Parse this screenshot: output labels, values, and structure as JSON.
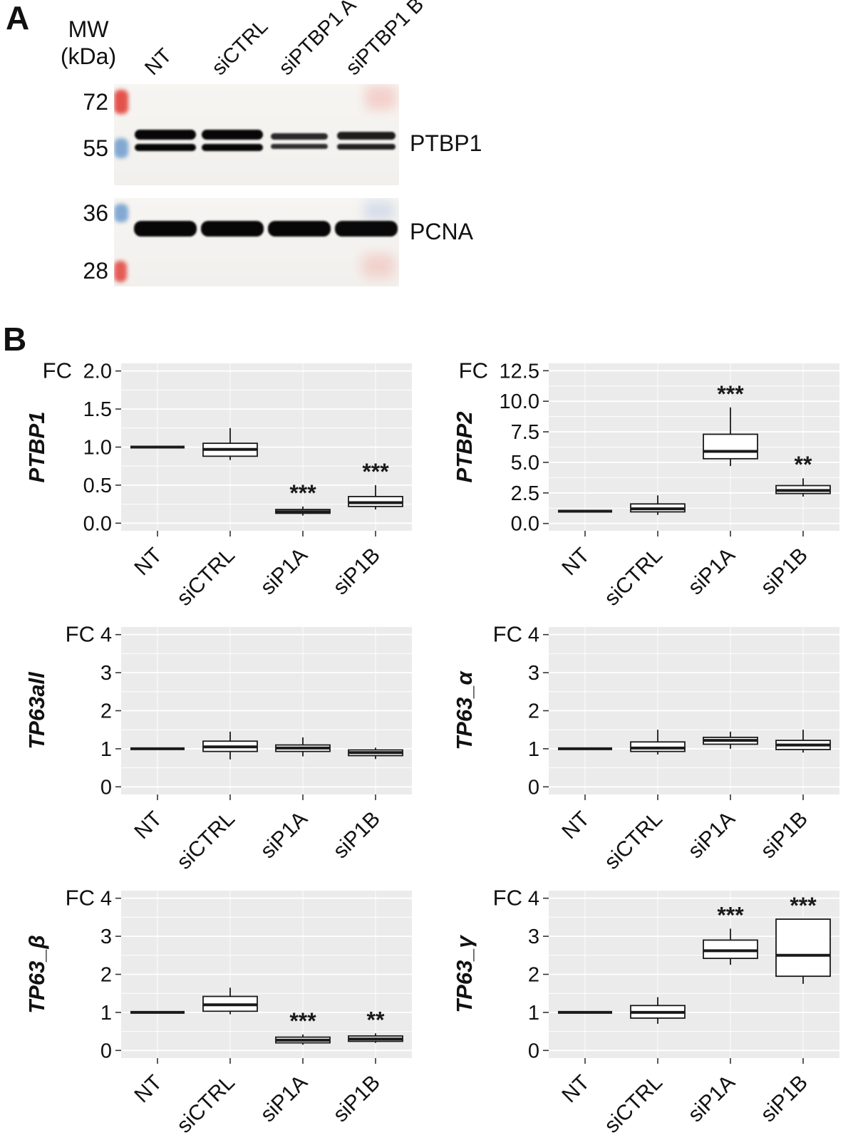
{
  "figure": {
    "panelA": {
      "label": "A",
      "mw_line1": "MW",
      "mw_line2": "(kDa)",
      "lane_labels": [
        "NT",
        "siCTRL",
        "siPTBP1 A",
        "siPTBP1 B"
      ],
      "blots": [
        {
          "name": "PTBP1",
          "band_type": "doublet",
          "markers": [
            {
              "label": "72",
              "color": "#e2423b"
            },
            {
              "label": "55",
              "color": "#6f9ccd"
            }
          ],
          "lanes": [
            {
              "intensity": 1.0
            },
            {
              "intensity": 1.0
            },
            {
              "intensity": 0.5
            },
            {
              "intensity": 0.68
            }
          ]
        },
        {
          "name": "PCNA",
          "band_type": "single",
          "markers": [
            {
              "label": "36",
              "color": "#6f9ccd"
            },
            {
              "label": "28",
              "color": "#e2423b"
            }
          ],
          "lanes": [
            {
              "intensity": 1.0
            },
            {
              "intensity": 1.0
            },
            {
              "intensity": 0.95
            },
            {
              "intensity": 0.9
            }
          ]
        }
      ]
    },
    "panelB": {
      "label": "B"
    }
  },
  "chart_data": [
    {
      "type": "boxplot",
      "gene_label": "PTBP1",
      "fc_label": "FC",
      "categories": [
        "NT",
        "siCTRL",
        "siP1A",
        "siP1B"
      ],
      "yticks": [
        "0.0",
        "0.5",
        "1.0",
        "1.5",
        "2.0"
      ],
      "ytick_values": [
        0,
        0.5,
        1,
        1.5,
        2
      ],
      "ylim": [
        -0.1,
        2.1
      ],
      "panel_bg": "#ebebeb",
      "grid": true,
      "boxes": [
        {
          "category": "NT",
          "low": 1.0,
          "q1": 1.0,
          "median": 1.0,
          "q3": 1.0,
          "high": 1.0,
          "sig": ""
        },
        {
          "category": "siCTRL",
          "low": 0.83,
          "q1": 0.88,
          "median": 0.97,
          "q3": 1.05,
          "high": 1.25,
          "sig": ""
        },
        {
          "category": "siP1A",
          "low": 0.1,
          "q1": 0.13,
          "median": 0.15,
          "q3": 0.18,
          "high": 0.22,
          "sig": "***"
        },
        {
          "category": "siP1B",
          "low": 0.18,
          "q1": 0.22,
          "median": 0.27,
          "q3": 0.35,
          "high": 0.5,
          "sig": "***"
        }
      ]
    },
    {
      "type": "boxplot",
      "gene_label": "PTBP2",
      "fc_label": "FC",
      "categories": [
        "NT",
        "siCTRL",
        "siP1A",
        "siP1B"
      ],
      "yticks": [
        "0.0",
        "2.5",
        "5.0",
        "7.5",
        "10.0",
        "12.5"
      ],
      "ytick_values": [
        0,
        2.5,
        5,
        7.5,
        10,
        12.5
      ],
      "ylim": [
        -0.6,
        13.1
      ],
      "panel_bg": "#ebebeb",
      "grid": true,
      "boxes": [
        {
          "category": "NT",
          "low": 1.0,
          "q1": 1.0,
          "median": 1.0,
          "q3": 1.0,
          "high": 1.0,
          "sig": ""
        },
        {
          "category": "siCTRL",
          "low": 0.7,
          "q1": 0.95,
          "median": 1.2,
          "q3": 1.6,
          "high": 2.3,
          "sig": ""
        },
        {
          "category": "siP1A",
          "low": 4.7,
          "q1": 5.3,
          "median": 5.9,
          "q3": 7.3,
          "high": 9.5,
          "sig": "***"
        },
        {
          "category": "siP1B",
          "low": 2.2,
          "q1": 2.45,
          "median": 2.7,
          "q3": 3.1,
          "high": 3.7,
          "sig": "**"
        }
      ]
    },
    {
      "type": "boxplot",
      "gene_label": "TP63all",
      "fc_label": "FC",
      "categories": [
        "NT",
        "siCTRL",
        "siP1A",
        "siP1B"
      ],
      "yticks": [
        "0",
        "1",
        "2",
        "3",
        "4"
      ],
      "ytick_values": [
        0,
        1,
        2,
        3,
        4
      ],
      "ylim": [
        -0.2,
        4.2
      ],
      "panel_bg": "#ebebeb",
      "grid": true,
      "boxes": [
        {
          "category": "NT",
          "low": 1.0,
          "q1": 1.0,
          "median": 1.0,
          "q3": 1.0,
          "high": 1.0,
          "sig": ""
        },
        {
          "category": "siCTRL",
          "low": 0.72,
          "q1": 0.93,
          "median": 1.05,
          "q3": 1.2,
          "high": 1.45,
          "sig": ""
        },
        {
          "category": "siP1A",
          "low": 0.8,
          "q1": 0.93,
          "median": 1.02,
          "q3": 1.1,
          "high": 1.3,
          "sig": ""
        },
        {
          "category": "siP1B",
          "low": 0.73,
          "q1": 0.82,
          "median": 0.9,
          "q3": 0.97,
          "high": 1.03,
          "sig": ""
        }
      ]
    },
    {
      "type": "boxplot",
      "gene_label": "TP63_α",
      "fc_label": "FC",
      "categories": [
        "NT",
        "siCTRL",
        "siP1A",
        "siP1B"
      ],
      "yticks": [
        "0",
        "1",
        "2",
        "3",
        "4"
      ],
      "ytick_values": [
        0,
        1,
        2,
        3,
        4
      ],
      "ylim": [
        -0.2,
        4.2
      ],
      "panel_bg": "#ebebeb",
      "grid": true,
      "boxes": [
        {
          "category": "NT",
          "low": 1.0,
          "q1": 1.0,
          "median": 1.0,
          "q3": 1.0,
          "high": 1.0,
          "sig": ""
        },
        {
          "category": "siCTRL",
          "low": 0.85,
          "q1": 0.93,
          "median": 1.02,
          "q3": 1.18,
          "high": 1.5,
          "sig": ""
        },
        {
          "category": "siP1A",
          "low": 1.0,
          "q1": 1.12,
          "median": 1.22,
          "q3": 1.3,
          "high": 1.45,
          "sig": ""
        },
        {
          "category": "siP1B",
          "low": 0.9,
          "q1": 0.98,
          "median": 1.1,
          "q3": 1.22,
          "high": 1.5,
          "sig": ""
        }
      ]
    },
    {
      "type": "boxplot",
      "gene_label": "TP63_β",
      "fc_label": "FC",
      "categories": [
        "NT",
        "siCTRL",
        "siP1A",
        "siP1B"
      ],
      "yticks": [
        "0",
        "1",
        "2",
        "3",
        "4"
      ],
      "ytick_values": [
        0,
        1,
        2,
        3,
        4
      ],
      "ylim": [
        -0.2,
        4.2
      ],
      "panel_bg": "#ebebeb",
      "grid": true,
      "boxes": [
        {
          "category": "NT",
          "low": 1.0,
          "q1": 1.0,
          "median": 1.0,
          "q3": 1.0,
          "high": 1.0,
          "sig": ""
        },
        {
          "category": "siCTRL",
          "low": 0.95,
          "q1": 1.03,
          "median": 1.2,
          "q3": 1.42,
          "high": 1.65,
          "sig": ""
        },
        {
          "category": "siP1A",
          "low": 0.15,
          "q1": 0.2,
          "median": 0.27,
          "q3": 0.35,
          "high": 0.42,
          "sig": "***"
        },
        {
          "category": "siP1B",
          "low": 0.2,
          "q1": 0.24,
          "median": 0.3,
          "q3": 0.38,
          "high": 0.45,
          "sig": "**"
        }
      ]
    },
    {
      "type": "boxplot",
      "gene_label": "TP63_γ",
      "fc_label": "FC",
      "categories": [
        "NT",
        "siCTRL",
        "siP1A",
        "siP1B"
      ],
      "yticks": [
        "0",
        "1",
        "2",
        "3",
        "4"
      ],
      "ytick_values": [
        0,
        1,
        2,
        3,
        4
      ],
      "ylim": [
        -0.2,
        4.2
      ],
      "panel_bg": "#ebebeb",
      "grid": true,
      "boxes": [
        {
          "category": "NT",
          "low": 1.0,
          "q1": 1.0,
          "median": 1.0,
          "q3": 1.0,
          "high": 1.0,
          "sig": ""
        },
        {
          "category": "siCTRL",
          "low": 0.7,
          "q1": 0.85,
          "median": 1.0,
          "q3": 1.18,
          "high": 1.4,
          "sig": ""
        },
        {
          "category": "siP1A",
          "low": 2.25,
          "q1": 2.42,
          "median": 2.62,
          "q3": 2.9,
          "high": 3.2,
          "sig": "***"
        },
        {
          "category": "siP1B",
          "low": 1.75,
          "q1": 1.95,
          "median": 2.5,
          "q3": 3.45,
          "high": 3.45,
          "sig": "***"
        }
      ]
    }
  ]
}
